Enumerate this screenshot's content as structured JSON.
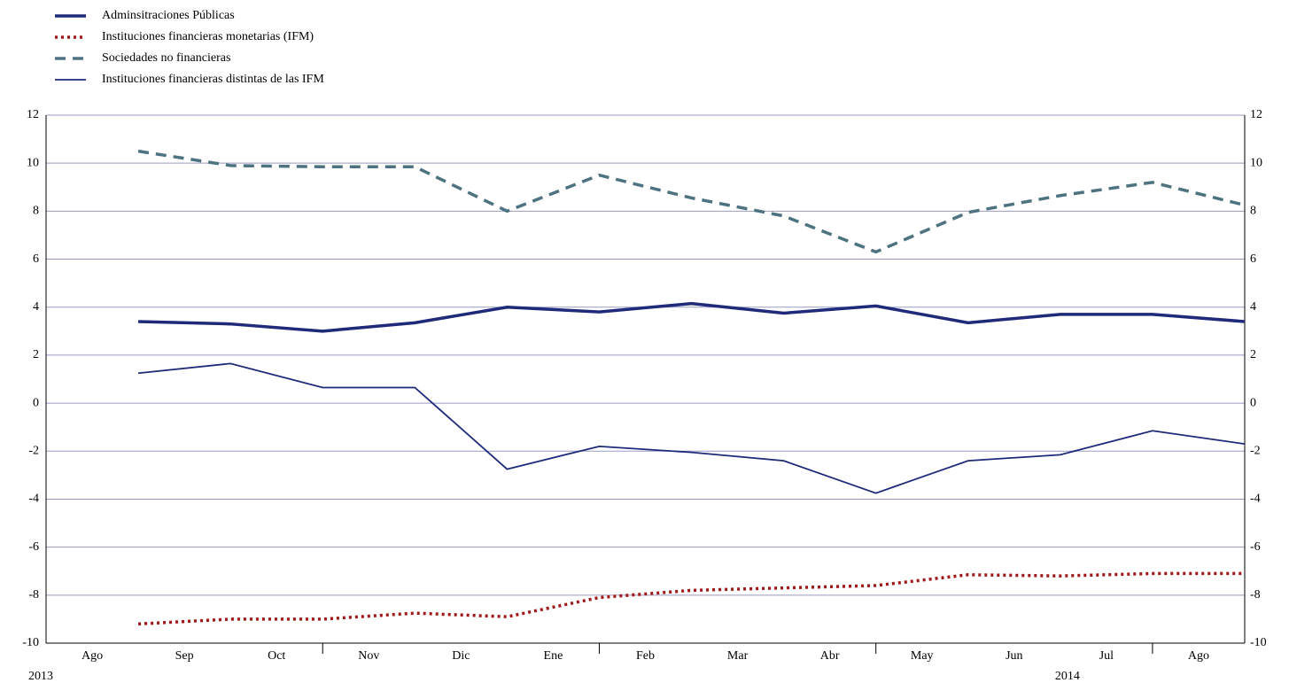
{
  "chart_data": {
    "type": "line",
    "categories": [
      "Ago",
      "Sep",
      "Oct",
      "Nov",
      "Dic",
      "Ene",
      "Feb",
      "Mar",
      "Abr",
      "May",
      "Jun",
      "Jul",
      "Ago"
    ],
    "year_labels": [
      "2013",
      "2014"
    ],
    "series": [
      {
        "name": "Adminsitraciones Públicas",
        "color": "#1f2a7a",
        "width": 3.5,
        "dash": "none",
        "values": [
          3.4,
          3.3,
          3.0,
          3.35,
          4.0,
          3.8,
          4.15,
          3.75,
          4.05,
          3.35,
          3.7,
          3.7,
          3.4
        ]
      },
      {
        "name": "Instituciones financieras monetarias (IFM)",
        "color": "#a01818",
        "width": 3.5,
        "dash": "3 4",
        "values": [
          -9.2,
          -9.0,
          -9.0,
          -8.75,
          -8.9,
          -8.1,
          -7.8,
          -7.7,
          -7.6,
          -7.15,
          -7.2,
          -7.1,
          -7.1
        ]
      },
      {
        "name": "Sociedades no financieras",
        "color": "#4e7380",
        "width": 3.5,
        "dash": "12 8",
        "values": [
          10.5,
          9.9,
          9.85,
          9.85,
          8.0,
          9.5,
          8.55,
          7.8,
          6.3,
          7.95,
          8.65,
          9.2,
          8.25
        ]
      },
      {
        "name": "Instituciones financieras distintas de las IFM",
        "color": "#1f2a7a",
        "width": 1.8,
        "dash": "none",
        "values": [
          1.25,
          1.65,
          0.65,
          0.65,
          -2.75,
          -1.8,
          -2.05,
          -2.4,
          -3.75,
          -2.4,
          -2.15,
          -1.15,
          -1.7
        ]
      }
    ],
    "ylim": [
      -10,
      12
    ],
    "yticks": [
      -10,
      -8,
      -6,
      -4,
      -2,
      0,
      2,
      4,
      6,
      8,
      10,
      12
    ],
    "grid": true
  }
}
